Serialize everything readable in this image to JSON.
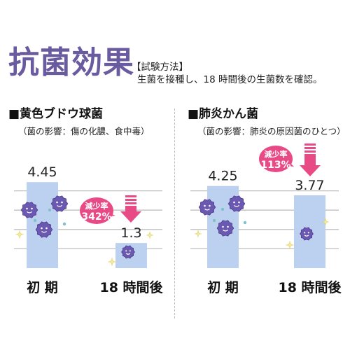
{
  "header": {
    "title": "抗菌効果",
    "method_heading": "【試験方法】",
    "method_text": "生菌を接種し、18 時間後の生菌数を確認。"
  },
  "colors": {
    "title": "#6a5ba0",
    "bar": "#bcd0ef",
    "arrow": "#e84a86",
    "bubble": "#e84a86",
    "germ": "#6b58b0",
    "grid": "#bfbfbf"
  },
  "icons": [
    "germ-icon",
    "sparkle-icon",
    "down-arrow-icon",
    "speech-bubble-icon"
  ],
  "chart_data": [
    {
      "type": "bar",
      "title": "■黄色ブドウ球菌",
      "subtitle": "（菌の影響：傷の化膿、食中毒）",
      "categories": [
        "初 期",
        "18 時間後"
      ],
      "values": [
        4.45,
        1.3
      ],
      "value_labels": [
        "4.45",
        "1.3"
      ],
      "reduction_label": "減少率",
      "reduction_value": "342%",
      "ylim": [
        0,
        5
      ]
    },
    {
      "type": "bar",
      "title": "■肺炎かん菌",
      "subtitle": "（菌の影響：肺炎の原因菌のひとつ）",
      "categories": [
        "初 期",
        "18 時間後"
      ],
      "values": [
        4.25,
        3.77
      ],
      "value_labels": [
        "4.25",
        "3.77"
      ],
      "reduction_label": "減少率",
      "reduction_value": "113%",
      "ylim": [
        0,
        5
      ]
    }
  ]
}
